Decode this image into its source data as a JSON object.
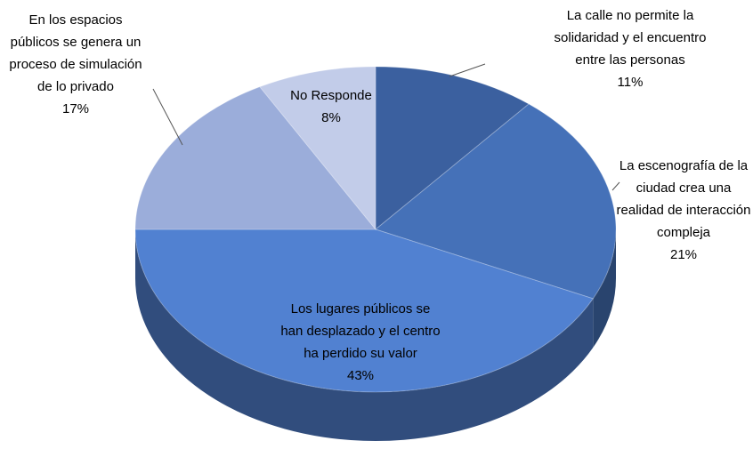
{
  "chart_data": {
    "type": "pie",
    "categories": [
      "La calle no permite la solidaridad y el encuentro entre las personas",
      "La escenografía de la ciudad crea una realidad de interacción compleja",
      "Los lugares públicos se han desplazado y el centro ha perdido su valor",
      "En los espacios públicos se genera un proceso de simulación de lo privado",
      "No Responde"
    ],
    "values": [
      11,
      21,
      43,
      17,
      8
    ],
    "value_labels": [
      "11%",
      "21%",
      "43%",
      "17%",
      "8%"
    ],
    "colors": [
      "#3b609f",
      "#4571b8",
      "#5181d1",
      "#9badda",
      "#c2cce9"
    ]
  }
}
